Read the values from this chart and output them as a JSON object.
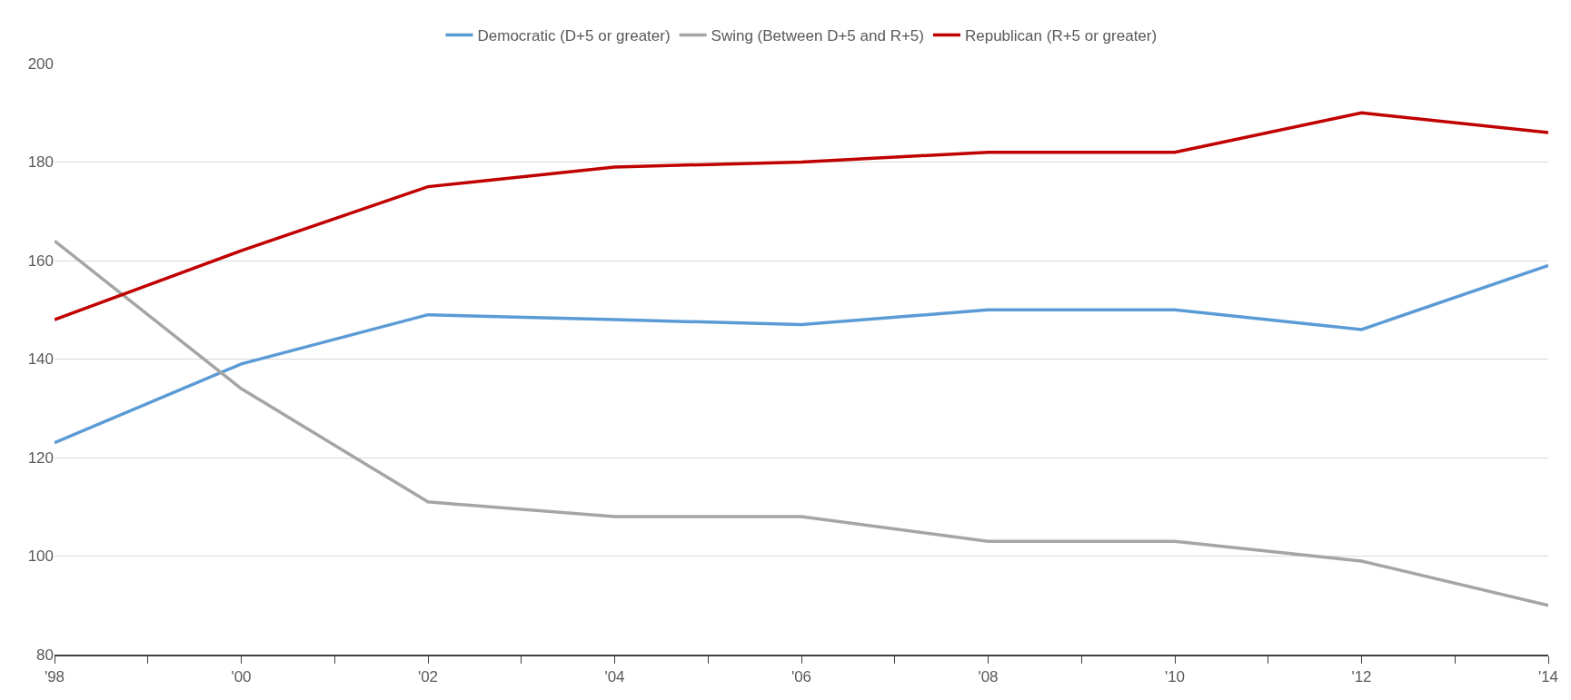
{
  "chart_data": {
    "type": "line",
    "categories": [
      "'98",
      "'00",
      "'02",
      "'04",
      "'06",
      "'08",
      "'10",
      "'12",
      "'14"
    ],
    "series": [
      {
        "name": "Democratic (D+5 or greater)",
        "color": "#5b9bd5",
        "values": [
          123,
          139,
          149,
          148,
          147,
          150,
          150,
          146,
          159
        ]
      },
      {
        "name": "Swing (Between D+5 and R+5)",
        "color": "#a5a5a5",
        "values": [
          164,
          134,
          111,
          108,
          108,
          103,
          103,
          99,
          90
        ]
      },
      {
        "name": "Republican (R+5 or greater)",
        "color": "#c00000",
        "values": [
          148,
          162,
          175,
          179,
          180,
          182,
          182,
          190,
          186
        ]
      }
    ],
    "ylim": [
      80,
      200
    ],
    "yticks": [
      80,
      100,
      120,
      140,
      160,
      180,
      200
    ],
    "grid": "y",
    "legend": "top",
    "marker": "none",
    "line_style": "solid"
  }
}
